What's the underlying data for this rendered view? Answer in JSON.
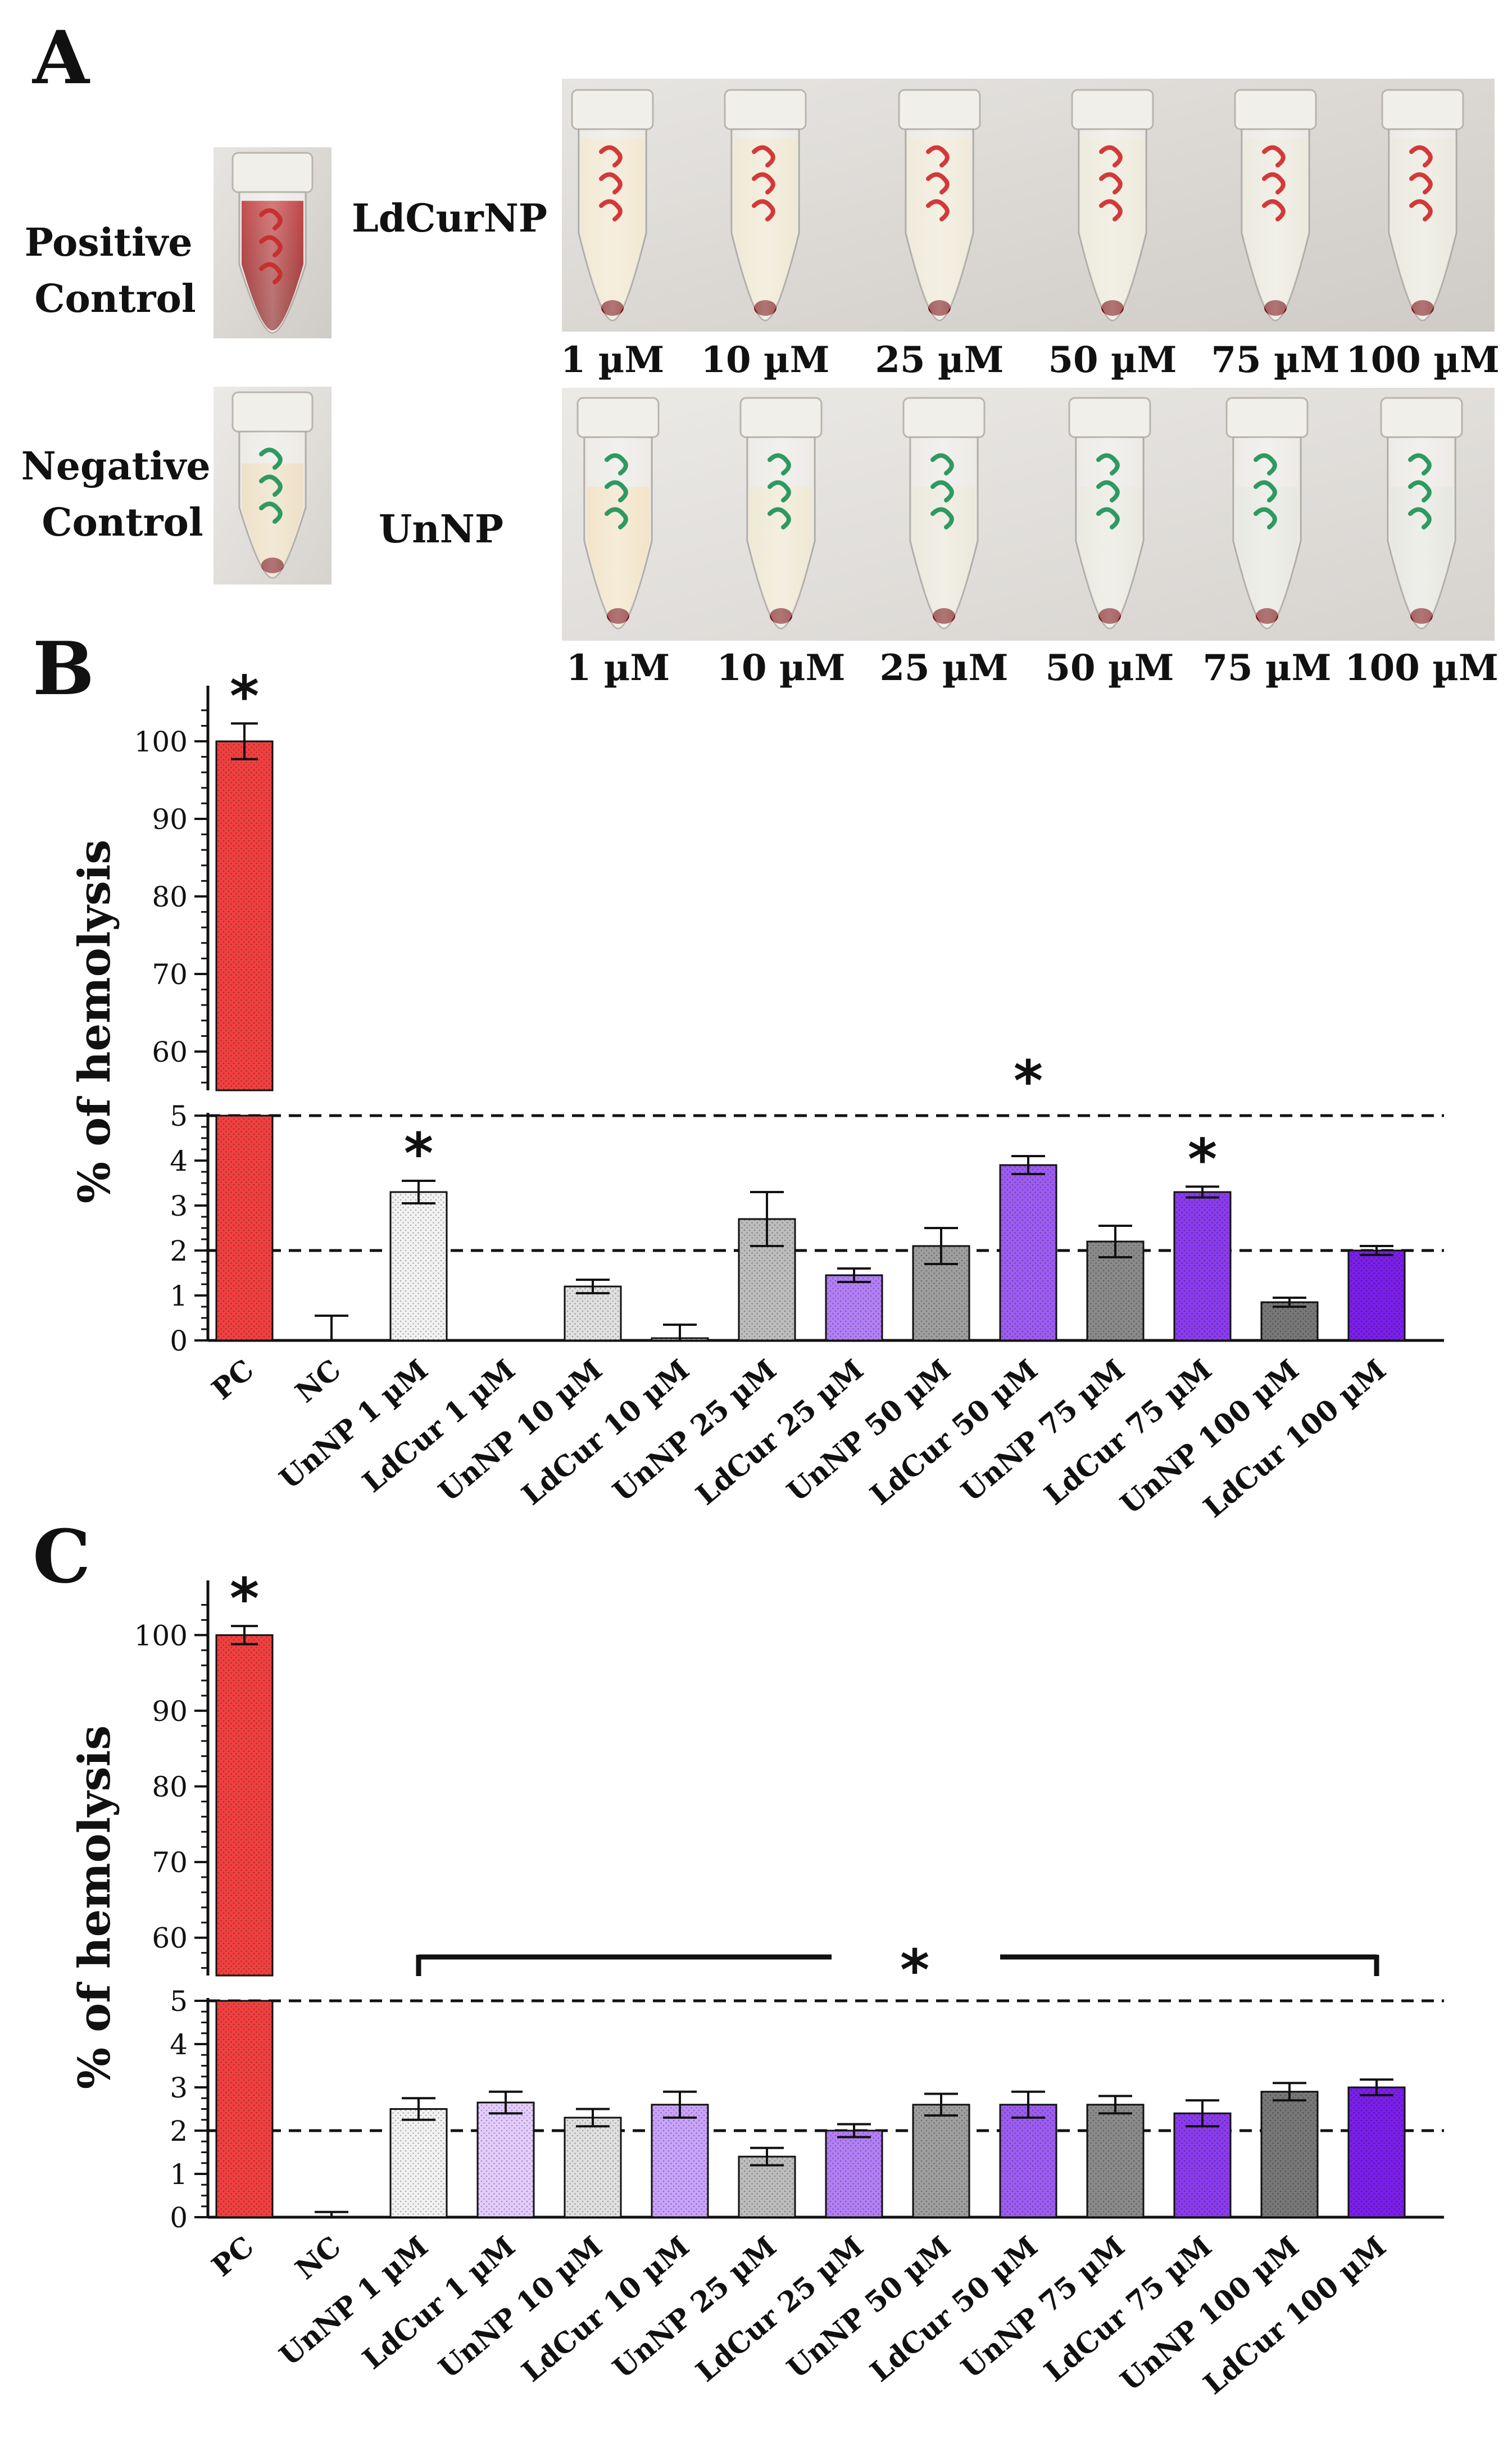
{
  "panels": {
    "A": "A",
    "B": "B",
    "C": "C"
  },
  "panel_a": {
    "positive_control": [
      "Positive",
      "Control"
    ],
    "negative_control": [
      "Negative",
      "Control"
    ],
    "row_ldcur": "LdCurNP",
    "row_unnp": "UnNP",
    "concentrations": [
      "1 µM",
      "10 µM",
      "25 µM",
      "50 µM",
      "75 µM",
      "100 µM"
    ],
    "colors": {
      "blood": "#8e1212",
      "ink_red": "#d23a3a",
      "ink_green": "#2e9a62",
      "pellet": "#7a1414"
    }
  },
  "colors": {
    "pc": "#f04040",
    "unnp": [
      "#f2f2f2",
      "#e0e0e0",
      "#bdbdbd",
      "#9e9e9e",
      "#8a8a8a",
      "#777777"
    ],
    "ldcur_b": [
      "#ffffff",
      "#ffffff",
      "#b27ff5",
      "#9d5cf0",
      "#8a3cec",
      "#7a1fe8"
    ],
    "ldcur_c": [
      "#e4ccff",
      "#c9a3fb",
      "#b27ff5",
      "#9d5cf0",
      "#8a3cec",
      "#7a1fe8"
    ]
  },
  "chart_data": [
    {
      "type": "bar",
      "panel": "B",
      "ylabel": "% of hemolysis",
      "categories": [
        "PC",
        "NC",
        "UnNP 1 µM",
        "LdCur 1 µM",
        "UnNP 10 µM",
        "LdCur 10 µM",
        "UnNP 25 µM",
        "LdCur 25 µM",
        "UnNP 50 µM",
        "LdCur 50 µM",
        "UnNP 75 µM",
        "LdCur 75 µM",
        "UnNP 100 µM",
        "LdCur 100 µM"
      ],
      "values": [
        100,
        0,
        3.3,
        0,
        1.2,
        0.05,
        2.7,
        1.45,
        2.1,
        3.9,
        2.2,
        3.3,
        0.85,
        2.0
      ],
      "errors": [
        2.3,
        0.55,
        0.25,
        0,
        0.15,
        0.3,
        0.6,
        0.15,
        0.4,
        0.2,
        0.35,
        0.12,
        0.1,
        0.1
      ],
      "y_axis_lower": {
        "range": [
          0,
          5
        ],
        "ticks": [
          "0",
          "1",
          "2",
          "3",
          "4",
          "5"
        ]
      },
      "y_axis_upper": {
        "range": [
          55,
          105
        ],
        "ticks": [
          "60",
          "70",
          "80",
          "90",
          "100"
        ]
      },
      "reference_lines": [
        2,
        5
      ],
      "significance": {
        "symbol": "*",
        "marked": [
          "PC",
          "UnNP 1 µM",
          "LdCur 50 µM",
          "LdCur 75 µM"
        ]
      }
    },
    {
      "type": "bar",
      "panel": "C",
      "ylabel": "% of hemolysis",
      "categories": [
        "PC",
        "NC",
        "UnNP 1 µM",
        "LdCur 1 µM",
        "UnNP 10 µM",
        "LdCur 10 µM",
        "UnNP 25 µM",
        "LdCur 25 µM",
        "UnNP 50 µM",
        "LdCur 50 µM",
        "UnNP 75 µM",
        "LdCur 75 µM",
        "UnNP 100 µM",
        "LdCur 100 µM"
      ],
      "values": [
        100,
        0,
        2.5,
        2.65,
        2.3,
        2.6,
        1.4,
        2.0,
        2.6,
        2.6,
        2.6,
        2.4,
        2.9,
        3.0
      ],
      "errors": [
        1.2,
        0.12,
        0.25,
        0.25,
        0.2,
        0.3,
        0.2,
        0.15,
        0.25,
        0.3,
        0.2,
        0.3,
        0.2,
        0.18
      ],
      "y_axis_lower": {
        "range": [
          0,
          5
        ],
        "ticks": [
          "0",
          "1",
          "2",
          "3",
          "4",
          "5"
        ]
      },
      "y_axis_upper": {
        "range": [
          55,
          105
        ],
        "ticks": [
          "60",
          "70",
          "80",
          "90",
          "100"
        ]
      },
      "reference_lines": [
        2,
        5
      ],
      "significance": {
        "symbol": "*",
        "marked": [
          "PC"
        ],
        "bracket": "UnNP 1 µM – LdCur 100 µM"
      }
    }
  ]
}
